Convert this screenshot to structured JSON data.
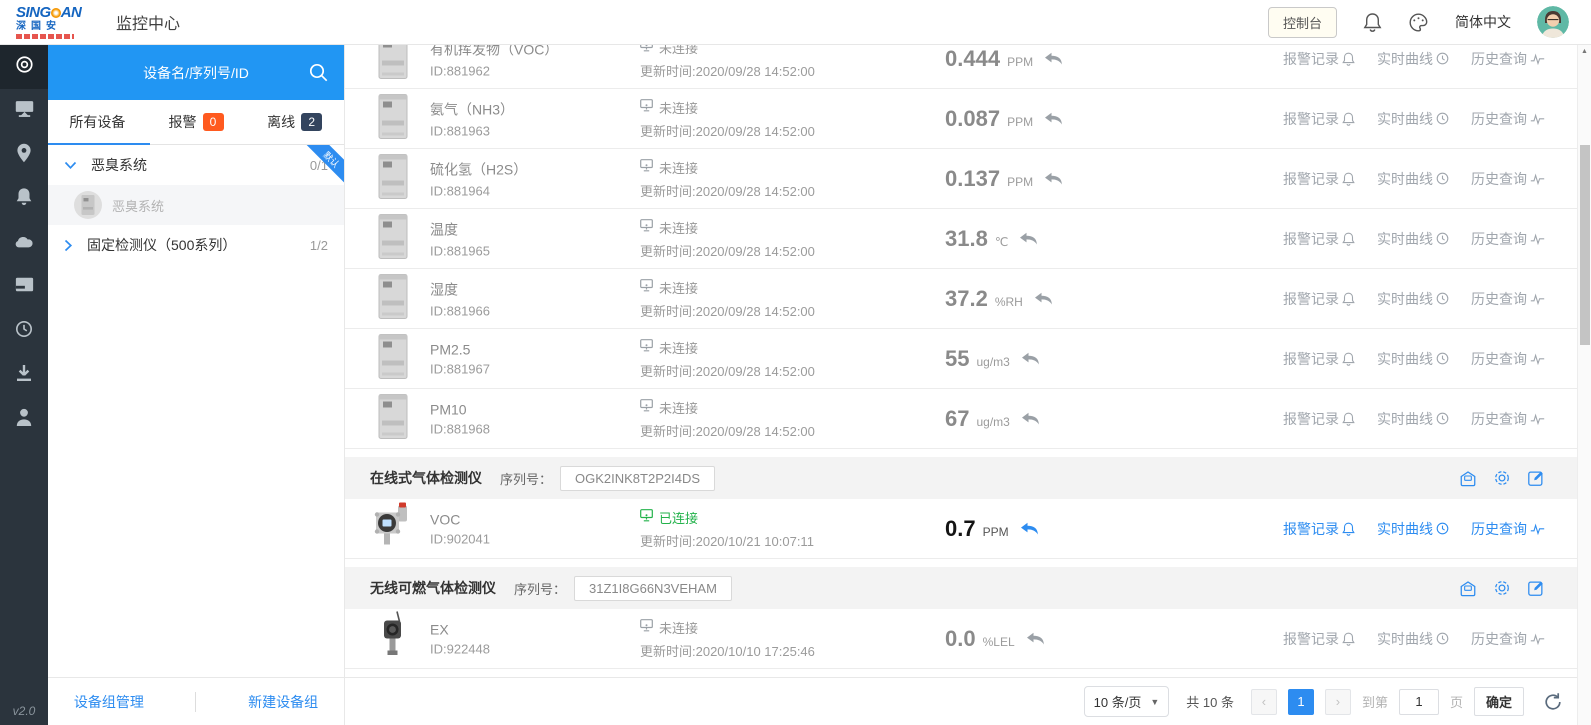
{
  "header": {
    "brand": "SINGOAN",
    "brand_prefix": "SING",
    "brand_suffix": "AN",
    "brand_cn": "深国安",
    "title": "监控中心",
    "console_button": "控制台",
    "language": "简体中文"
  },
  "sidebar": {
    "version": "v2.0",
    "icons": [
      {
        "name": "dashboard-icon",
        "active": true
      },
      {
        "name": "screen-icon",
        "active": false
      },
      {
        "name": "location-icon",
        "active": false
      },
      {
        "name": "bell-icon",
        "active": false
      },
      {
        "name": "cloud-icon",
        "active": false
      },
      {
        "name": "card-icon",
        "active": false
      },
      {
        "name": "clock-icon",
        "active": false
      },
      {
        "name": "download-icon",
        "active": false
      },
      {
        "name": "user-icon",
        "active": false
      }
    ]
  },
  "device_panel": {
    "search_placeholder": "设备名/序列号/ID",
    "tabs": [
      {
        "label": "所有设备",
        "active": true
      },
      {
        "label": "报警",
        "badge": "0"
      },
      {
        "label": "离线",
        "badge": "2"
      }
    ],
    "tree": [
      {
        "label": "恶臭系统",
        "count": "0/1",
        "ribbon": "默认",
        "expanded": true,
        "children": [
          {
            "label": "恶臭系统"
          }
        ]
      },
      {
        "label": "固定检测仪（500系列）",
        "count": "1/2",
        "expanded": false
      }
    ],
    "footer": {
      "manage": "设备组管理",
      "create": "新建设备组"
    }
  },
  "table": {
    "labels": {
      "id_prefix": "ID:",
      "updated_prefix": "更新时间:",
      "offline": "未连接",
      "online": "已连接",
      "serial_label": "序列号：",
      "actions": {
        "alarm": "报警记录",
        "realtime": "实时曲线",
        "history": "历史查询"
      }
    },
    "items": [
      {
        "type": "row",
        "thumb": "cabinet",
        "name": "有机挥发物（VOC）",
        "id": "881962",
        "online": false,
        "updated": "2020/09/28 14:52:00",
        "value": "0.444",
        "unit": "PPM",
        "partial": true
      },
      {
        "type": "row",
        "thumb": "cabinet",
        "name": "氨气（NH3）",
        "id": "881963",
        "online": false,
        "updated": "2020/09/28 14:52:00",
        "value": "0.087",
        "unit": "PPM"
      },
      {
        "type": "row",
        "thumb": "cabinet",
        "name": "硫化氢（H2S）",
        "id": "881964",
        "online": false,
        "updated": "2020/09/28 14:52:00",
        "value": "0.137",
        "unit": "PPM"
      },
      {
        "type": "row",
        "thumb": "cabinet",
        "name": "温度",
        "id": "881965",
        "online": false,
        "updated": "2020/09/28 14:52:00",
        "value": "31.8",
        "unit": "℃"
      },
      {
        "type": "row",
        "thumb": "cabinet",
        "name": "湿度",
        "id": "881966",
        "online": false,
        "updated": "2020/09/28 14:52:00",
        "value": "37.2",
        "unit": "%RH"
      },
      {
        "type": "row",
        "thumb": "cabinet",
        "name": "PM2.5",
        "id": "881967",
        "online": false,
        "updated": "2020/09/28 14:52:00",
        "value": "55",
        "unit": "ug/m3"
      },
      {
        "type": "row",
        "thumb": "cabinet",
        "name": "PM10",
        "id": "881968",
        "online": false,
        "updated": "2020/09/28 14:52:00",
        "value": "67",
        "unit": "ug/m3"
      },
      {
        "type": "group",
        "title": "在线式气体检测仪",
        "serial": "OGK2INK8T2P2I4DS"
      },
      {
        "type": "row",
        "thumb": "detector",
        "name": "VOC",
        "id": "902041",
        "online": true,
        "updated": "2020/10/21 10:07:11",
        "value": "0.7",
        "unit": "PPM"
      },
      {
        "type": "group",
        "title": "无线可燃气体检测仪",
        "serial": "31Z1I8G66N3VEHAM"
      },
      {
        "type": "row",
        "thumb": "wireless",
        "name": "EX",
        "id": "922448",
        "online": false,
        "updated": "2020/10/10 17:25:46",
        "value": "0.0",
        "unit": "%LEL"
      }
    ]
  },
  "pagination": {
    "page_size": "10 条/页",
    "total": "共 10 条",
    "current_page": "1",
    "goto_prefix": "到第",
    "goto_value": "1",
    "goto_suffix": "页",
    "confirm": "确定"
  },
  "colors": {
    "accent_blue": "#2d8cf0",
    "search_blue": "#2196f3",
    "online_green": "#23b24b",
    "alarm_orange": "#ff5a1f",
    "offline_navy": "#33445e"
  }
}
